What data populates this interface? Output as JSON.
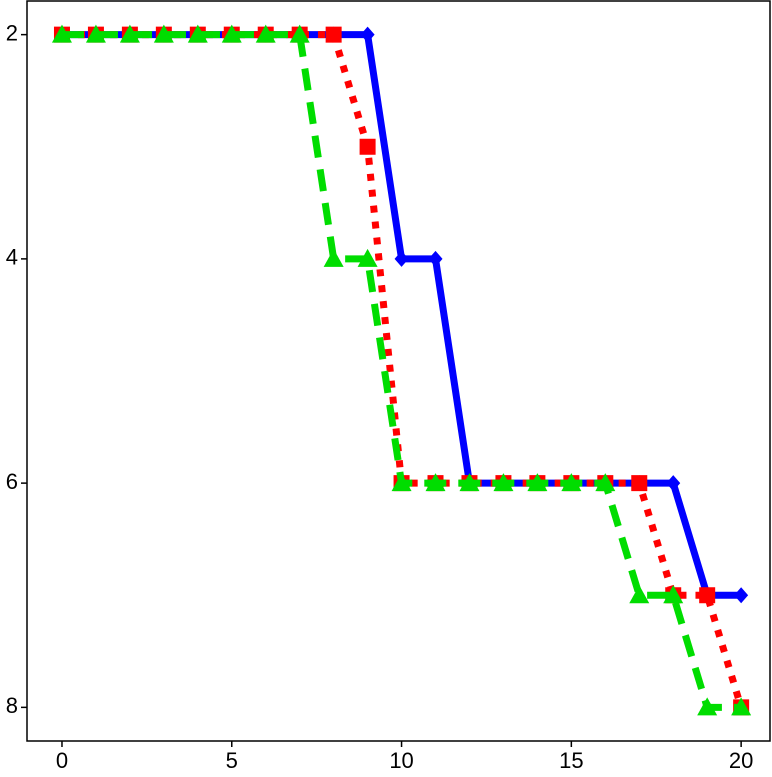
{
  "chart_data": {
    "type": "line",
    "x": [
      0,
      1,
      2,
      3,
      4,
      5,
      6,
      7,
      8,
      9,
      10,
      11,
      12,
      13,
      14,
      15,
      16,
      17,
      18,
      19,
      20
    ],
    "series": [
      {
        "color": "#0000ff",
        "marker": "diamond",
        "linestyle": "solid",
        "values": [
          2,
          2,
          2,
          2,
          2,
          2,
          2,
          2,
          2,
          2,
          4,
          4,
          6,
          6,
          6,
          6,
          6,
          6,
          6,
          7,
          7
        ]
      },
      {
        "color": "#ff0000",
        "marker": "square",
        "linestyle": "dotted",
        "values": [
          2,
          2,
          2,
          2,
          2,
          2,
          2,
          2,
          2,
          3,
          6,
          6,
          6,
          6,
          6,
          6,
          6,
          6,
          7,
          7,
          8
        ]
      },
      {
        "color": "#00dd00",
        "marker": "triangle",
        "linestyle": "dashed",
        "values": [
          2,
          2,
          2,
          2,
          2,
          2,
          2,
          2,
          4,
          4,
          6,
          6,
          6,
          6,
          6,
          6,
          6,
          7,
          7,
          8,
          8
        ]
      }
    ],
    "xlim": [
      -1.03,
      20.85
    ],
    "xticks": [
      0,
      5,
      10,
      15,
      20
    ],
    "ylim": [
      1.7,
      8.3
    ],
    "yticks": [
      2,
      4,
      6,
      8
    ],
    "y_inverted": true,
    "grid": false
  }
}
